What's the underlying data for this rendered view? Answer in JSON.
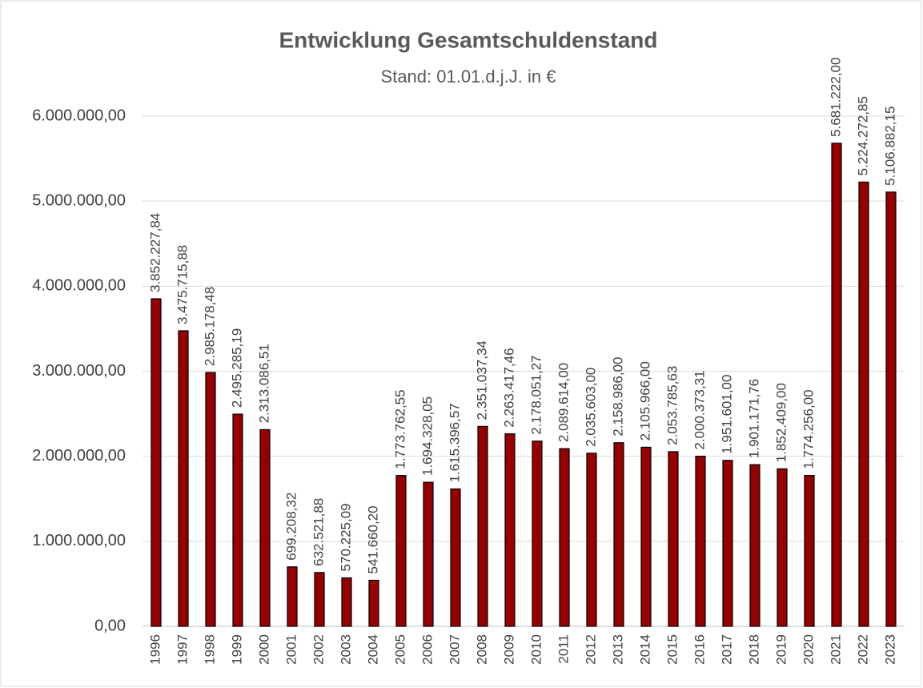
{
  "chart_data": {
    "type": "bar",
    "title": "Entwicklung Gesamtschuldenstand",
    "subtitle": "Stand: 01.01.d.j.J. in €",
    "categories": [
      "1996",
      "1997",
      "1998",
      "1999",
      "2000",
      "2001",
      "2002",
      "2003",
      "2004",
      "2005",
      "2006",
      "2007",
      "2008",
      "2009",
      "2010",
      "2011",
      "2012",
      "2013",
      "2014",
      "2015",
      "2016",
      "2017",
      "2018",
      "2019",
      "2020",
      "2021",
      "2022",
      "2023"
    ],
    "values": [
      3852227.84,
      3475715.88,
      2985178.48,
      2495285.19,
      2313086.51,
      699208.32,
      632521.88,
      570225.09,
      541660.2,
      1773762.55,
      1694328.05,
      1615396.57,
      2351037.34,
      2263417.46,
      2178051.27,
      2089614.0,
      2035603.0,
      2158986.0,
      2105966.0,
      2053785.63,
      2000373.31,
      1951601.0,
      1901171.76,
      1852409.0,
      1774256.0,
      5681222.0,
      5224272.85,
      5106882.15
    ],
    "value_labels": [
      "3.852.227,84",
      "3.475.715,88",
      "2.985.178,48",
      "2.495.285,19",
      "2.313.086,51",
      "699.208,32",
      "632.521,88",
      "570.225,09",
      "541.660,20",
      "1.773.762,55",
      "1.694.328,05",
      "1.615.396,57",
      "2.351.037,34",
      "2.263.417,46",
      "2.178.051,27",
      "2.089.614,00",
      "2.035.603,00",
      "2.158.986,00",
      "2.105.966,00",
      "2.053.785,63",
      "2.000.373,31",
      "1.951.601,00",
      "1.901.171,76",
      "1.852.409,00",
      "1.774.256,00",
      "5.681.222,00",
      "5.224.272,85",
      "5.106.882,15"
    ],
    "color": "#960000",
    "ylim": [
      0,
      6000000
    ],
    "yticks": [
      {
        "value": 0,
        "label": "0,00"
      },
      {
        "value": 1000000,
        "label": "1.000.000,00"
      },
      {
        "value": 2000000,
        "label": "2.000.000,00"
      },
      {
        "value": 3000000,
        "label": "3.000.000,00"
      },
      {
        "value": 4000000,
        "label": "4.000.000,00"
      },
      {
        "value": 5000000,
        "label": "5.000.000,00"
      },
      {
        "value": 6000000,
        "label": "6.000.000,00"
      }
    ],
    "grid": true
  }
}
